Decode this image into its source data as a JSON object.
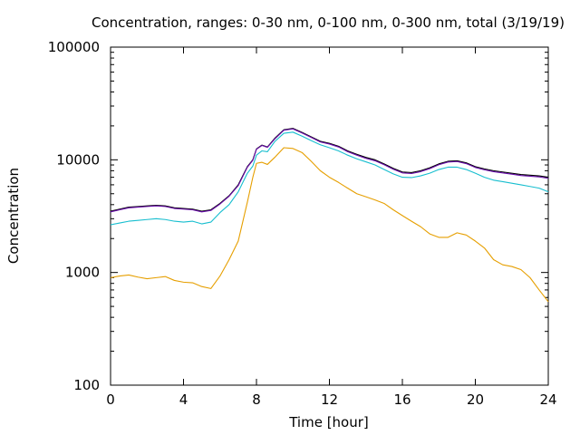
{
  "chart_data": {
    "type": "line",
    "title": "Concentration, ranges: 0-30 nm, 0-100 nm, 0-300 nm, total (3/19/19)",
    "xlabel": "Time [hour]",
    "ylabel": "Concentration",
    "xlim": [
      0,
      24
    ],
    "ylim": [
      100,
      100000
    ],
    "y_scale": "log",
    "grid": false,
    "x_ticks": [
      0,
      4,
      8,
      12,
      16,
      20,
      24
    ],
    "x_tick_labels": [
      "0",
      "4",
      "8",
      "12",
      "16",
      "20",
      "24"
    ],
    "y_ticks": [
      100,
      1000,
      10000,
      100000
    ],
    "y_tick_labels": [
      "100",
      "1000",
      "10000",
      "100000"
    ],
    "x": [
      0,
      0.5,
      1,
      1.5,
      2,
      2.5,
      3,
      3.5,
      4,
      4.5,
      5,
      5.5,
      6,
      6.5,
      7,
      7.5,
      7.8,
      8,
      8.3,
      8.6,
      9,
      9.5,
      10,
      10.5,
      11,
      11.5,
      12,
      12.5,
      13,
      13.5,
      14,
      14.5,
      15,
      15.5,
      16,
      16.5,
      17,
      17.5,
      18,
      18.5,
      19,
      19.5,
      20,
      20.5,
      21,
      21.5,
      22,
      22.5,
      23,
      23.5,
      24
    ],
    "series": [
      {
        "color": "#000000",
        "values": [
          3500,
          3650,
          3800,
          3850,
          3900,
          3950,
          3900,
          3750,
          3700,
          3650,
          3500,
          3600,
          4100,
          4800,
          6000,
          8700,
          10000,
          12500,
          13500,
          13000,
          15500,
          18500,
          19000,
          17500,
          16000,
          14600,
          14000,
          13200,
          12000,
          11200,
          10500,
          10000,
          9200,
          8400,
          7800,
          7700,
          8000,
          8500,
          9200,
          9700,
          9800,
          9400,
          8700,
          8300,
          8000,
          7800,
          7600,
          7400,
          7300,
          7200,
          7000
        ]
      },
      {
        "color": "#6a0dad",
        "values": [
          3450,
          3600,
          3750,
          3800,
          3850,
          3900,
          3850,
          3700,
          3650,
          3600,
          3450,
          3550,
          4050,
          4750,
          5900,
          8600,
          9900,
          12400,
          13400,
          12900,
          15300,
          18300,
          18800,
          17300,
          15800,
          14400,
          13800,
          13000,
          11800,
          11000,
          10300,
          9800,
          9050,
          8250,
          7650,
          7550,
          7850,
          8350,
          9050,
          9550,
          9650,
          9250,
          8550,
          8150,
          7850,
          7650,
          7450,
          7250,
          7150,
          7050,
          6850
        ]
      },
      {
        "color": "#17becf",
        "values": [
          2650,
          2750,
          2850,
          2900,
          2950,
          3000,
          2950,
          2850,
          2800,
          2850,
          2700,
          2800,
          3400,
          4000,
          5200,
          7600,
          8800,
          11000,
          12000,
          11800,
          14500,
          17200,
          17600,
          16200,
          14800,
          13600,
          12800,
          12000,
          11000,
          10200,
          9600,
          9000,
          8200,
          7500,
          7000,
          6950,
          7200,
          7600,
          8200,
          8600,
          8600,
          8200,
          7600,
          7000,
          6600,
          6400,
          6200,
          6000,
          5800,
          5600,
          5200
        ]
      },
      {
        "color": "#e69f00",
        "values": [
          900,
          930,
          950,
          910,
          880,
          900,
          920,
          850,
          820,
          810,
          750,
          720,
          930,
          1300,
          1900,
          4200,
          7000,
          9300,
          9500,
          9100,
          10500,
          12800,
          12600,
          11600,
          9700,
          8000,
          7000,
          6300,
          5600,
          5000,
          4700,
          4400,
          4100,
          3600,
          3200,
          2850,
          2550,
          2200,
          2050,
          2050,
          2250,
          2150,
          1900,
          1650,
          1300,
          1170,
          1130,
          1060,
          900,
          700,
          550
        ]
      }
    ]
  }
}
